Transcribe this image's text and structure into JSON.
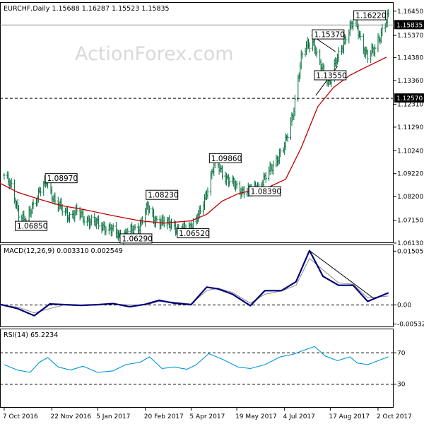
{
  "watermark": "ActionForex.com",
  "colors": {
    "candle": "#006e3a",
    "ma": "#c00000",
    "macd": "#00007a",
    "signal": "#888888",
    "rsi": "#0095d8",
    "grid": "#000000"
  },
  "chart_data": [
    {
      "type": "candlestick",
      "symbol": "EURCHF",
      "timeframe": "Daily",
      "header": "EURCHF,Daily  1.15688 1.16287 1.15523 1.15835",
      "ohlc_last": {
        "open": "1.15688",
        "high": "1.16287",
        "low": "1.15523",
        "close": "1.15835"
      },
      "ylim": [
        1.0613,
        1.1682
      ],
      "y_ticks": [
        "1.16450",
        "1.15370",
        "1.14380",
        "1.13360",
        "1.12310",
        "1.11290",
        "1.10240",
        "1.09220",
        "1.08200",
        "1.07150",
        "1.06130"
      ],
      "current_price_label": "1.15835",
      "current_price": 1.15835,
      "support_line_label": "1.12570",
      "support_line": 1.1257,
      "annotations": [
        {
          "text": "1.08970",
          "x": "2016-11-17",
          "y": 1.0897
        },
        {
          "text": "1.06850",
          "x": "2016-10-19",
          "y": 1.0685
        },
        {
          "text": "1.06290",
          "x": "2017-01-28",
          "y": 1.0629
        },
        {
          "text": "1.08230",
          "x": "2017-02-22",
          "y": 1.0823
        },
        {
          "text": "1.06520",
          "x": "2017-03-24",
          "y": 1.0652
        },
        {
          "text": "1.09860",
          "x": "2017-04-24",
          "y": 1.0986
        },
        {
          "text": "1.08390",
          "x": "2017-06-01",
          "y": 1.0839
        },
        {
          "text": "1.15370",
          "x": "2017-08-01",
          "y": 1.1537
        },
        {
          "text": "1.13550",
          "x": "2017-08-03",
          "y": 1.1355
        },
        {
          "text": "1.16220",
          "x": "2017-09-10",
          "y": 1.1622
        }
      ],
      "ma_series": {
        "x": [
          "2016-10-01",
          "2016-10-20",
          "2016-11-10",
          "2016-12-01",
          "2016-12-25",
          "2017-01-20",
          "2017-02-15",
          "2017-03-10",
          "2017-04-05",
          "2017-04-20",
          "2017-05-05",
          "2017-05-20",
          "2017-06-05",
          "2017-06-20",
          "2017-07-05",
          "2017-07-20",
          "2017-08-05",
          "2017-08-20",
          "2017-09-05",
          "2017-09-20",
          "2017-10-10"
        ],
        "y": [
          1.0884,
          1.0839,
          1.0808,
          1.078,
          1.076,
          1.0735,
          1.0712,
          1.0702,
          1.0712,
          1.0741,
          1.08,
          1.0832,
          1.085,
          1.0865,
          1.0897,
          1.1037,
          1.122,
          1.1305,
          1.136,
          1.1395,
          1.144
        ]
      },
      "price_path": {
        "x": [
          "2016-10-07",
          "2016-10-14",
          "2016-10-21",
          "2016-10-28",
          "2016-11-04",
          "2016-11-11",
          "2016-11-17",
          "2016-11-25",
          "2016-12-02",
          "2016-12-09",
          "2016-12-16",
          "2016-12-23",
          "2017-01-01",
          "2017-01-10",
          "2017-01-18",
          "2017-01-28",
          "2017-02-05",
          "2017-02-14",
          "2017-02-22",
          "2017-03-01",
          "2017-03-10",
          "2017-03-18",
          "2017-03-24",
          "2017-04-01",
          "2017-04-08",
          "2017-04-15",
          "2017-04-21",
          "2017-04-28",
          "2017-05-06",
          "2017-05-14",
          "2017-05-22",
          "2017-06-01",
          "2017-06-10",
          "2017-06-18",
          "2017-06-26",
          "2017-07-04",
          "2017-07-12",
          "2017-07-20",
          "2017-07-26",
          "2017-08-01",
          "2017-08-05",
          "2017-08-10",
          "2017-08-16",
          "2017-08-22",
          "2017-08-28",
          "2017-09-03",
          "2017-09-10",
          "2017-09-16",
          "2017-09-22",
          "2017-09-28",
          "2017-10-04",
          "2017-10-08",
          "2017-10-12"
        ],
        "y": [
          1.0915,
          1.086,
          1.0752,
          1.07,
          1.079,
          1.085,
          1.0885,
          1.08,
          1.076,
          1.0735,
          1.075,
          1.0725,
          1.0705,
          1.069,
          1.067,
          1.0645,
          1.066,
          1.069,
          1.077,
          1.072,
          1.07,
          1.0705,
          1.066,
          1.0685,
          1.07,
          1.076,
          1.086,
          1.0975,
          1.092,
          1.088,
          1.085,
          1.0845,
          1.087,
          1.092,
          1.0985,
          1.104,
          1.119,
          1.143,
          1.15,
          1.151,
          1.142,
          1.138,
          1.133,
          1.141,
          1.148,
          1.156,
          1.16,
          1.151,
          1.144,
          1.147,
          1.154,
          1.158,
          1.162
        ]
      },
      "trendlines": [
        {
          "x": [
            "2017-07-30",
            "2017-08-22"
          ],
          "y": [
            1.1537,
            1.1465
          ]
        },
        {
          "x": [
            "2017-08-03",
            "2017-08-24"
          ],
          "y": [
            1.127,
            1.14
          ]
        }
      ],
      "xlim": [
        "2016-10-03",
        "2017-10-17"
      ]
    },
    {
      "type": "line",
      "title": "MACD(12,26,9) 0.003310 0.002549",
      "ylim": [
        -0.0062,
        0.0167
      ],
      "y_ticks": [
        "0.015052",
        "0.00",
        "-0.005321"
      ],
      "series": [
        {
          "name": "MACD",
          "x": [
            "2016-10-03",
            "2016-10-20",
            "2016-11-05",
            "2016-11-20",
            "2016-12-05",
            "2016-12-20",
            "2017-01-05",
            "2017-01-20",
            "2017-02-05",
            "2017-02-20",
            "2017-03-05",
            "2017-03-20",
            "2017-04-05",
            "2017-04-20",
            "2017-05-01",
            "2017-05-15",
            "2017-06-01",
            "2017-06-15",
            "2017-07-01",
            "2017-07-15",
            "2017-07-28",
            "2017-08-10",
            "2017-08-25",
            "2017-09-08",
            "2017-09-22",
            "2017-10-12"
          ],
          "y": [
            0.0002,
            -0.001,
            -0.003,
            0.0003,
            0.0001,
            -0.0001,
            0.0001,
            0.0004,
            -0.0005,
            0.0002,
            0.0013,
            0.0005,
            0.0001,
            0.005,
            0.0045,
            0.003,
            -0.0002,
            0.004,
            0.004,
            0.0065,
            0.0152,
            0.008,
            0.0055,
            0.0055,
            0.001,
            0.0034
          ]
        },
        {
          "name": "Signal",
          "x": [
            "2016-10-03",
            "2016-10-20",
            "2016-11-05",
            "2016-11-20",
            "2016-12-05",
            "2016-12-20",
            "2017-01-05",
            "2017-01-20",
            "2017-02-05",
            "2017-02-20",
            "2017-03-05",
            "2017-03-20",
            "2017-04-05",
            "2017-04-20",
            "2017-05-01",
            "2017-05-15",
            "2017-06-01",
            "2017-06-15",
            "2017-07-01",
            "2017-07-15",
            "2017-07-28",
            "2017-08-10",
            "2017-08-25",
            "2017-09-08",
            "2017-09-22",
            "2017-10-12"
          ],
          "y": [
            0.0,
            -0.0006,
            -0.0022,
            -0.001,
            0.0001,
            0.0,
            0.0001,
            0.0003,
            0.0,
            0.0,
            0.001,
            0.0008,
            0.0003,
            0.004,
            0.0047,
            0.0035,
            0.0005,
            0.003,
            0.0039,
            0.0055,
            0.013,
            0.0098,
            0.0062,
            0.0058,
            0.002,
            0.0025
          ]
        }
      ],
      "trendline": {
        "x": [
          "2017-07-28",
          "2017-09-28"
        ],
        "y": [
          0.0152,
          0.0018
        ]
      },
      "xlim": [
        "2016-10-03",
        "2017-10-17"
      ]
    },
    {
      "type": "line",
      "title": "RSI(14) 65.2234",
      "ylim": [
        0,
        100
      ],
      "y_ticks": [
        "70",
        "30"
      ],
      "reference_lines": [
        70,
        30
      ],
      "series": [
        {
          "name": "RSI",
          "x": [
            "2016-10-07",
            "2016-10-20",
            "2016-11-01",
            "2016-11-10",
            "2016-11-18",
            "2016-11-28",
            "2016-12-10",
            "2016-12-22",
            "2017-01-05",
            "2017-01-20",
            "2017-02-01",
            "2017-02-15",
            "2017-02-24",
            "2017-03-08",
            "2017-03-20",
            "2017-04-01",
            "2017-04-10",
            "2017-04-22",
            "2017-05-05",
            "2017-05-20",
            "2017-06-01",
            "2017-06-15",
            "2017-06-30",
            "2017-07-12",
            "2017-07-24",
            "2017-08-02",
            "2017-08-12",
            "2017-08-24",
            "2017-09-05",
            "2017-09-12",
            "2017-09-22",
            "2017-10-12"
          ],
          "y": [
            55,
            48,
            45,
            58,
            64,
            52,
            48,
            53,
            45,
            47,
            55,
            58,
            65,
            50,
            52,
            49,
            55,
            69,
            62,
            52,
            50,
            55,
            65,
            68,
            74,
            78,
            66,
            60,
            65,
            57,
            55,
            65
          ]
        }
      ],
      "xlim": [
        "2016-10-03",
        "2017-10-17"
      ]
    }
  ],
  "x_axis": {
    "tick_labels": [
      "7 Oct 2016",
      "22 Nov 2016",
      "5 Jan 2017",
      "20 Feb 2017",
      "5 Apr 2017",
      "19 May 2017",
      "4 Jul 2017",
      "17 Aug 2017",
      "2 Oct 2017"
    ],
    "tick_dates": [
      "2016-10-07",
      "2016-11-22",
      "2017-01-05",
      "2017-02-20",
      "2017-04-05",
      "2017-05-19",
      "2017-07-04",
      "2017-08-17",
      "2017-10-02"
    ]
  }
}
